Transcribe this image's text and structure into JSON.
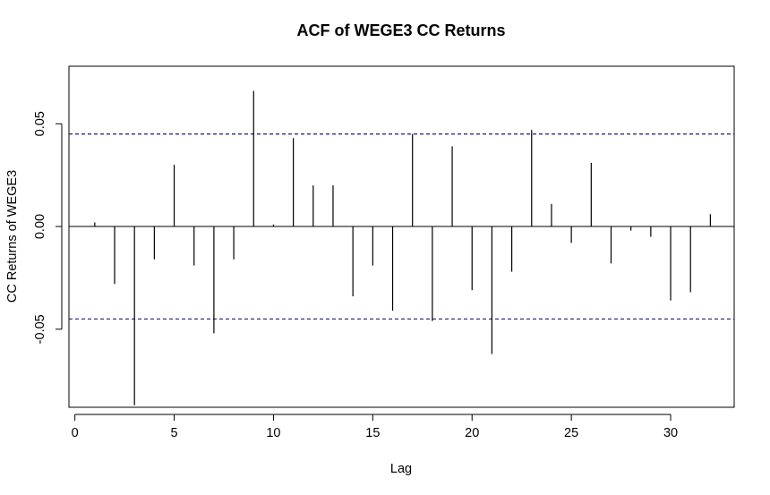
{
  "chart_data": {
    "type": "bar",
    "title": "ACF of WEGE3 CC Returns",
    "xlabel": "Lag",
    "ylabel": "CC Returns of WEGE3",
    "xlim": [
      -0.3,
      33.2
    ],
    "ylim": [
      -0.088,
      0.078
    ],
    "x_ticks": [
      0,
      5,
      10,
      15,
      20,
      25,
      30
    ],
    "x_tick_labels": [
      "0",
      "5",
      "10",
      "15",
      "20",
      "25",
      "30"
    ],
    "y_ticks": [
      -0.05,
      0.0,
      0.05
    ],
    "y_tick_labels": [
      "-0.05",
      "0.00",
      "0.05"
    ],
    "confidence_bound": 0.045,
    "confidence_line_color": "#1a1a80",
    "bar_color": "#000000",
    "grid": false,
    "series": [
      {
        "lags": [
          1,
          2,
          3,
          4,
          5,
          6,
          7,
          8,
          9,
          10,
          11,
          12,
          13,
          14,
          15,
          16,
          17,
          18,
          19,
          20,
          21,
          22,
          23,
          24,
          25,
          26,
          27,
          28,
          29,
          30,
          31,
          32
        ],
        "values": [
          0.002,
          -0.028,
          -0.087,
          -0.016,
          0.03,
          -0.019,
          -0.052,
          -0.016,
          0.066,
          0.001,
          0.043,
          0.02,
          0.02,
          -0.034,
          -0.019,
          -0.041,
          0.045,
          -0.046,
          0.039,
          -0.031,
          -0.062,
          -0.022,
          0.047,
          0.011,
          -0.008,
          0.031,
          -0.018,
          -0.002,
          -0.005,
          -0.036,
          -0.032,
          0.006
        ]
      }
    ]
  }
}
